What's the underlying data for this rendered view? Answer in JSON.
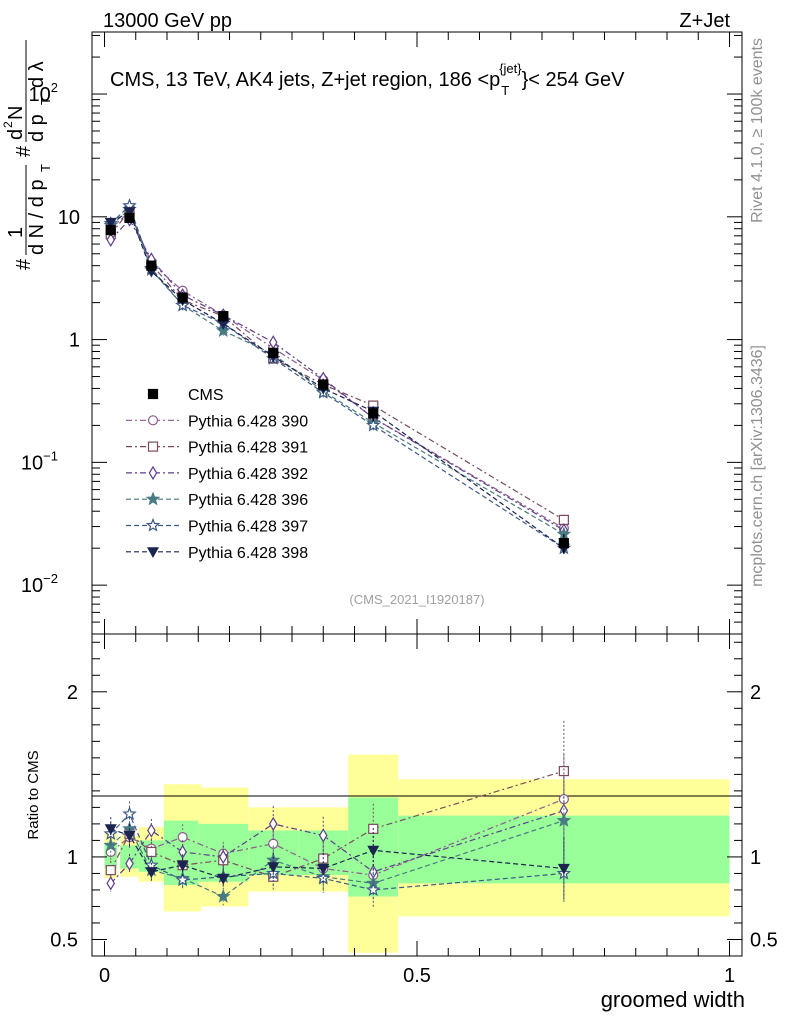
{
  "header": {
    "left": "13000 GeV pp",
    "right": "Z+Jet"
  },
  "side_labels": {
    "rivet": "Rivet 4.1.0, ≥ 100k events",
    "mcplots": "mcplots.cern.ch [arXiv:1306.3436]"
  },
  "chart_data": [
    {
      "type": "line",
      "panel": "main",
      "title": "CMS, 13 TeV, AK4 jets, Z+jet region, 186 <p_T^{jet}< 254 GeV",
      "title_main": "CMS, 13 TeV, AK4 jets, Z+jet region, 186 <p",
      "title_sup": "{jet}",
      "title_sub": "T",
      "title_end": "}< 254 GeV",
      "watermark": "(CMS_2021_I1920187)",
      "ylabel_parts": [
        "#",
        "1",
        "d N / d p",
        "T",
        "#",
        "d",
        "2",
        "N",
        "d p",
        "T",
        "d λ"
      ],
      "yscale": "log",
      "ylim": [
        0.004,
        320
      ],
      "xlim": [
        -0.02,
        1.02
      ],
      "yticks": [
        {
          "v": 0.01,
          "base": "10",
          "exp": "−2"
        },
        {
          "v": 0.1,
          "base": "10",
          "exp": "−1"
        },
        {
          "v": 1,
          "label": "1"
        },
        {
          "v": 10,
          "label": "10"
        },
        {
          "v": 100,
          "base": "10",
          "exp": "2"
        }
      ],
      "x": [
        0.01,
        0.04,
        0.075,
        0.125,
        0.19,
        0.27,
        0.35,
        0.43,
        0.735
      ],
      "xerr": [
        0.01,
        0.015,
        0.02,
        0.03,
        0.04,
        0.04,
        0.04,
        0.04,
        0.265
      ],
      "data": {
        "name": "CMS",
        "values": [
          7.8,
          9.8,
          4.0,
          2.2,
          1.55,
          0.78,
          0.43,
          0.25,
          0.022
        ],
        "errors": [
          0.8,
          0.9,
          0.4,
          0.25,
          0.15,
          0.08,
          0.05,
          0.035,
          0.004
        ],
        "color": "#000000"
      },
      "series": [
        {
          "name": "Pythia 6.428 390",
          "color": "#8a5b8b",
          "marker": "circle-open",
          "dash": "6,3,2,3",
          "values": [
            8.0,
            11.0,
            4.2,
            2.5,
            1.58,
            0.85,
            0.47,
            0.23,
            0.029
          ]
        },
        {
          "name": "Pythia 6.428 391",
          "color": "#7a4a5c",
          "marker": "square-open",
          "dash": "6,3,2,3",
          "values": [
            7.2,
            11.2,
            4.1,
            2.1,
            1.55,
            0.7,
            0.43,
            0.29,
            0.034
          ]
        },
        {
          "name": "Pythia 6.428 392",
          "color": "#5b3d8a",
          "marker": "diamond-open",
          "dash": "6,3,2,3",
          "values": [
            6.5,
            9.5,
            4.5,
            2.3,
            1.58,
            0.95,
            0.48,
            0.23,
            0.028
          ]
        },
        {
          "name": "Pythia 6.428 396",
          "color": "#4a7a82",
          "marker": "star-filled",
          "dash": "5,3",
          "values": [
            8.5,
            11.5,
            3.7,
            1.9,
            1.18,
            0.76,
            0.38,
            0.21,
            0.026
          ]
        },
        {
          "name": "Pythia 6.428 397",
          "color": "#3c5a86",
          "marker": "star-open",
          "dash": "5,3",
          "values": [
            8.8,
            12.3,
            3.8,
            1.9,
            1.35,
            0.7,
            0.37,
            0.2,
            0.02
          ]
        },
        {
          "name": "Pythia 6.428 398",
          "color": "#1c2450",
          "marker": "triangle-down",
          "dash": "5,3",
          "values": [
            9.0,
            11.0,
            3.6,
            2.1,
            1.35,
            0.73,
            0.4,
            0.26,
            0.02
          ]
        }
      ]
    },
    {
      "type": "line",
      "panel": "ratio",
      "ylabel": "Ratio to CMS",
      "xlabel": "groomed width",
      "ylim": [
        0.4,
        2.35
      ],
      "xlim": [
        -0.02,
        1.02
      ],
      "yticks": [
        0.5,
        1,
        2
      ],
      "ytick_labels": [
        "0.5",
        "1",
        "2"
      ],
      "xticks": [
        0,
        0.5,
        1
      ],
      "xtick_labels": [
        "0",
        "0.5",
        "1"
      ],
      "x": [
        0.01,
        0.04,
        0.075,
        0.125,
        0.19,
        0.27,
        0.35,
        0.43,
        0.735
      ],
      "xerr": [
        0.01,
        0.015,
        0.02,
        0.03,
        0.04,
        0.04,
        0.04,
        0.04,
        0.265
      ],
      "band_yellow": [
        [
          0.87,
          1.15
        ],
        [
          0.88,
          1.13
        ],
        [
          0.85,
          1.18
        ],
        [
          0.67,
          1.44
        ],
        [
          0.7,
          1.42
        ],
        [
          0.79,
          1.3
        ],
        [
          0.79,
          1.3
        ],
        [
          0.42,
          1.62
        ],
        [
          0.64,
          1.47
        ]
      ],
      "band_green": [
        [
          0.93,
          1.08
        ],
        [
          0.93,
          1.07
        ],
        [
          0.91,
          1.1
        ],
        [
          0.83,
          1.22
        ],
        [
          0.85,
          1.2
        ],
        [
          0.89,
          1.16
        ],
        [
          0.89,
          1.16
        ],
        [
          0.76,
          1.36
        ],
        [
          0.84,
          1.25
        ]
      ],
      "series": [
        {
          "name": "Pythia 6.428 390",
          "values": [
            1.03,
            1.12,
            1.05,
            1.12,
            1.02,
            1.08,
            0.93,
            0.89,
            1.35
          ]
        },
        {
          "name": "Pythia 6.428 391",
          "values": [
            0.92,
            1.14,
            1.03,
            0.95,
            0.98,
            0.88,
            0.99,
            1.17,
            1.52
          ]
        },
        {
          "name": "Pythia 6.428 392",
          "values": [
            0.84,
            0.96,
            1.16,
            1.03,
            1.0,
            1.2,
            1.13,
            0.91,
            1.28
          ]
        },
        {
          "name": "Pythia 6.428 396",
          "values": [
            1.07,
            1.17,
            0.92,
            0.87,
            0.76,
            0.98,
            0.88,
            0.84,
            1.22
          ]
        },
        {
          "name": "Pythia 6.428 397",
          "values": [
            1.14,
            1.26,
            0.95,
            0.86,
            0.88,
            0.9,
            0.87,
            0.8,
            0.9
          ]
        },
        {
          "name": "Pythia 6.428 398",
          "values": [
            1.17,
            1.13,
            0.91,
            0.95,
            0.87,
            0.94,
            0.93,
            1.04,
            0.93
          ]
        }
      ],
      "series_errors": [
        0.06,
        0.06,
        0.06,
        0.07,
        0.07,
        0.09,
        0.1,
        0.13,
        0.2
      ]
    }
  ]
}
